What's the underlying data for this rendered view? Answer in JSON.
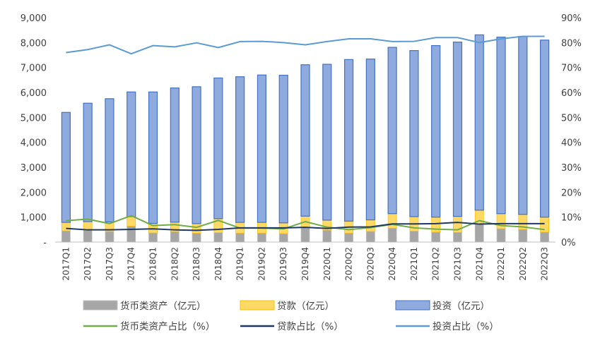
{
  "chart_data": {
    "type": "bar",
    "stacked": true,
    "categories": [
      "2017Q1",
      "2017Q2",
      "2017Q3",
      "2017Q4",
      "2018Q1",
      "2018Q2",
      "2018Q3",
      "2018Q4",
      "2019Q1",
      "2019Q2",
      "2019Q3",
      "2019Q4",
      "2020Q1",
      "2020Q2",
      "2020Q3",
      "2020Q4",
      "2021Q1",
      "2021Q2",
      "2021Q3",
      "2021Q4",
      "2022Q1",
      "2022Q2",
      "2022Q3"
    ],
    "y_left": {
      "range": [
        0,
        9000
      ],
      "ticks": [
        "-",
        "1,000",
        "2,000",
        "3,000",
        "4,000",
        "5,000",
        "6,000",
        "7,000",
        "8,000",
        "9,000"
      ]
    },
    "y_right": {
      "range": [
        0,
        90
      ],
      "ticks": [
        "0%",
        "10%",
        "20%",
        "30%",
        "40%",
        "50%",
        "60%",
        "70%",
        "80%",
        "90%"
      ]
    },
    "grid": false,
    "legend_position": "bottom",
    "bar_series": [
      {
        "name": "货币类资产（亿元）",
        "color": "#b3b3b3",
        "values": [
          450,
          480,
          430,
          640,
          370,
          420,
          360,
          380,
          360,
          360,
          340,
          560,
          480,
          360,
          430,
          560,
          440,
          400,
          390,
          720,
          540,
          510,
          400
        ]
      },
      {
        "name": "贷款（亿元）",
        "color": "#ffc000",
        "values": [
          340,
          340,
          380,
          380,
          380,
          380,
          380,
          560,
          430,
          430,
          430,
          480,
          400,
          480,
          460,
          580,
          580,
          600,
          640,
          560,
          600,
          600,
          600
        ]
      },
      {
        "name": "投资（亿元）",
        "color": "#8faadc",
        "values": [
          4410,
          4750,
          4940,
          5000,
          5270,
          5380,
          5490,
          5640,
          5840,
          5910,
          5920,
          6070,
          6250,
          6480,
          6450,
          6670,
          6660,
          6880,
          6990,
          7030,
          7080,
          7140,
          7100
        ]
      }
    ],
    "line_series": [
      {
        "name": "货币类资产占比（%）",
        "color": "#70ad47",
        "values": [
          8.6,
          9.2,
          7.4,
          10.6,
          6.6,
          7.0,
          5.9,
          8.7,
          5.6,
          5.6,
          5.3,
          8.2,
          6.0,
          5.0,
          5.8,
          7.1,
          5.7,
          5.2,
          4.9,
          8.6,
          6.6,
          6.1,
          5.0
        ]
      },
      {
        "name": "贷款占比（%）",
        "color": "#1f3864",
        "values": [
          5.5,
          4.9,
          4.9,
          5.1,
          5.3,
          4.9,
          4.7,
          5.1,
          5.7,
          5.7,
          5.7,
          5.9,
          5.5,
          6.0,
          6.1,
          7.3,
          7.3,
          7.4,
          7.9,
          7.2,
          7.4,
          7.4,
          7.4
        ]
      },
      {
        "name": "投资占比（%）",
        "color": "#5b9bd5",
        "values": [
          76.0,
          77.2,
          79.1,
          75.5,
          78.8,
          78.3,
          79.9,
          78.0,
          80.4,
          80.5,
          80.0,
          79.1,
          80.4,
          81.5,
          81.5,
          80.4,
          80.5,
          82.0,
          82.0,
          80.0,
          81.5,
          82.5,
          82.5
        ]
      }
    ]
  }
}
